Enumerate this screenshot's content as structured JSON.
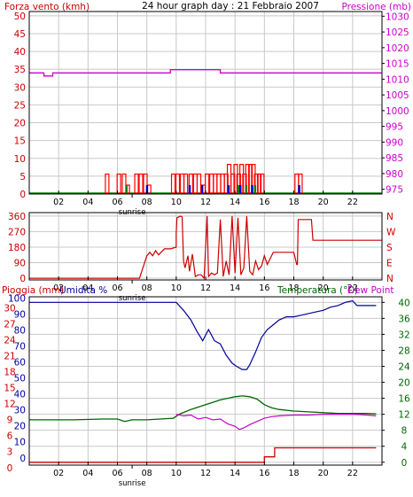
{
  "header": {
    "left_label": "Forza vento (kmh)",
    "title": "24 hour graph day : 21 Febbraio 2007",
    "right_label": "Pressione (mb)"
  },
  "colors": {
    "wind": "#ff0000",
    "wind_outline": "#cc0000",
    "gust_green": "#008000",
    "gust_blue": "#0000cc",
    "pressure": "#cc00cc",
    "direction": "#cc0000",
    "humidity": "#000099",
    "temperature": "#006600",
    "dewpoint": "#cc00cc",
    "rain": "#cc0000",
    "axis_red": "#cc0000",
    "axis_magenta": "#cc00cc",
    "axis_green": "#006600",
    "axis_blue": "#000099",
    "grid": "#c8c8c8",
    "frame": "#000000"
  },
  "chart_data": [
    {
      "type": "bar",
      "panel": "wind",
      "y_left_label": "Forza vento (kmh)",
      "y_left_ticks": [
        0,
        5,
        10,
        15,
        20,
        25,
        30,
        35,
        40,
        45,
        50
      ],
      "y_left_range": [
        0,
        50
      ],
      "y_right_label": "Pressione (mb)",
      "y_right_ticks": [
        975,
        980,
        985,
        990,
        995,
        1000,
        1005,
        1010,
        1015,
        1020,
        1025,
        1030
      ],
      "y_right_range": [
        975,
        1030
      ],
      "x_ticks": [
        "02",
        "04",
        "06",
        "08",
        "10",
        "12",
        "14",
        "16",
        "18",
        "20",
        "22"
      ],
      "x_range": [
        0,
        24
      ],
      "sunrise_label": "sunrise",
      "grid": true,
      "wind_bars": [
        {
          "x": 5.3,
          "v": 5.6
        },
        {
          "x": 6.1,
          "v": 5.6
        },
        {
          "x": 6.45,
          "v": 5.6
        },
        {
          "x": 6.7,
          "v": 2.5
        },
        {
          "x": 7.3,
          "v": 5.6
        },
        {
          "x": 7.6,
          "v": 5.6
        },
        {
          "x": 7.9,
          "v": 5.6
        },
        {
          "x": 8.15,
          "v": 2.5
        },
        {
          "x": 9.8,
          "v": 5.6
        },
        {
          "x": 10.1,
          "v": 5.6
        },
        {
          "x": 10.4,
          "v": 5.6
        },
        {
          "x": 10.65,
          "v": 5.6
        },
        {
          "x": 11.0,
          "v": 5.6
        },
        {
          "x": 11.3,
          "v": 5.6
        },
        {
          "x": 11.55,
          "v": 5.6
        },
        {
          "x": 11.85,
          "v": 2.5
        },
        {
          "x": 12.1,
          "v": 5.6
        },
        {
          "x": 12.4,
          "v": 5.6
        },
        {
          "x": 12.65,
          "v": 5.6
        },
        {
          "x": 12.9,
          "v": 5.6
        },
        {
          "x": 13.15,
          "v": 5.6
        },
        {
          "x": 13.4,
          "v": 5.6
        },
        {
          "x": 13.6,
          "v": 8.3
        },
        {
          "x": 13.85,
          "v": 5.6
        },
        {
          "x": 14.05,
          "v": 8.3
        },
        {
          "x": 14.25,
          "v": 5.6
        },
        {
          "x": 14.45,
          "v": 8.3
        },
        {
          "x": 14.65,
          "v": 5.6
        },
        {
          "x": 14.85,
          "v": 8.3
        },
        {
          "x": 15.05,
          "v": 8.3
        },
        {
          "x": 15.25,
          "v": 8.3
        },
        {
          "x": 15.45,
          "v": 5.6
        },
        {
          "x": 15.65,
          "v": 5.6
        },
        {
          "x": 15.85,
          "v": 5.6
        },
        {
          "x": 18.2,
          "v": 5.6
        },
        {
          "x": 18.45,
          "v": 5.6
        }
      ],
      "gust_bars": [
        {
          "x": 6.6,
          "v": 2.5,
          "c": "green"
        },
        {
          "x": 8.0,
          "v": 2.5,
          "c": "blue"
        },
        {
          "x": 10.9,
          "v": 2.5,
          "c": "blue"
        },
        {
          "x": 11.75,
          "v": 2.5,
          "c": "blue"
        },
        {
          "x": 13.55,
          "v": 2.5,
          "c": "blue"
        },
        {
          "x": 14.2,
          "v": 2.5,
          "c": "green"
        },
        {
          "x": 14.35,
          "v": 2.5,
          "c": "blue"
        },
        {
          "x": 14.75,
          "v": 2.5,
          "c": "green"
        },
        {
          "x": 15.15,
          "v": 2.5,
          "c": "blue"
        },
        {
          "x": 15.35,
          "v": 2.5,
          "c": "green"
        },
        {
          "x": 18.35,
          "v": 2.5,
          "c": "blue"
        }
      ],
      "pressure": {
        "x": [
          0,
          1.0,
          1.0,
          1.6,
          1.6,
          3.4,
          3.4,
          7.3,
          7.3,
          9.6,
          9.6,
          13.0,
          13.0,
          14.2,
          14.2,
          24
        ],
        "y": [
          1012,
          1012,
          1011,
          1011,
          1012,
          1012,
          1012,
          1012,
          1012,
          1012,
          1013,
          1013,
          1012,
          1012,
          1012,
          1012
        ]
      }
    },
    {
      "type": "line",
      "panel": "direction",
      "y_left_ticks": [
        0,
        90,
        180,
        270,
        360
      ],
      "y_left_range": [
        0,
        360
      ],
      "y_right_ticks": [
        "N",
        "W",
        "S",
        "E",
        "N"
      ],
      "x_ticks": [
        "02",
        "04",
        "06",
        "08",
        "10",
        "12",
        "14",
        "16",
        "18",
        "20",
        "22"
      ],
      "x_range": [
        0,
        24
      ],
      "sunrise_label": "sunrise",
      "grid": true,
      "series": [
        {
          "x": [
            0,
            7.5,
            8.0,
            8.2,
            8.4,
            8.6,
            8.8,
            9.2,
            9.6,
            10.0,
            10.0,
            10.05,
            10.3,
            10.4,
            10.5,
            10.6,
            10.8,
            10.9,
            11.1,
            11.3,
            11.5,
            11.7,
            11.9,
            12.1,
            12.2,
            12.4,
            12.6,
            12.8,
            13.0,
            13.2,
            13.4,
            13.6,
            13.8,
            14.0,
            14.2,
            14.4,
            14.6,
            14.8,
            15.0,
            15.2,
            15.4,
            15.6,
            15.8,
            16.0,
            16.2,
            16.6,
            17.0,
            18.0,
            18.2,
            18.25,
            18.3,
            19.2,
            19.3,
            24
          ],
          "y": [
            0,
            0,
            130,
            150,
            130,
            160,
            135,
            170,
            170,
            180,
            260,
            350,
            360,
            355,
            100,
            60,
            130,
            40,
            140,
            10,
            20,
            20,
            0,
            360,
            10,
            30,
            20,
            30,
            340,
            10,
            100,
            20,
            360,
            30,
            350,
            20,
            60,
            360,
            40,
            20,
            100,
            50,
            70,
            130,
            80,
            150,
            150,
            150,
            80,
            80,
            340,
            340,
            220,
            220
          ]
        }
      ]
    },
    {
      "type": "line",
      "panel": "climate",
      "y_left_label_1": "Pioggia (mm)",
      "y_left_label_2": "Umidita %",
      "y_right_label_1": "Temperatura (°C)",
      "y_right_label_2": "Dew Point",
      "rain_ticks": [
        0,
        3,
        6,
        9,
        12,
        15,
        18,
        21,
        24,
        27,
        30
      ],
      "humidity_ticks": [
        0,
        10,
        20,
        30,
        40,
        50,
        60,
        70,
        80,
        90,
        100
      ],
      "y_left_range": [
        0,
        100
      ],
      "temperature_ticks": [
        0,
        4,
        8,
        12,
        16,
        20,
        24,
        28,
        32,
        36,
        40
      ],
      "y_right_range": [
        0,
        40
      ],
      "x_ticks": [
        "02",
        "04",
        "06",
        "08",
        "10",
        "12",
        "14",
        "16",
        "18",
        "20",
        "22"
      ],
      "x_range": [
        0,
        24
      ],
      "sunrise_label": "sunrise",
      "grid": true,
      "series": [
        {
          "name": "Umidita %",
          "x": [
            0,
            10.0,
            10.5,
            11.0,
            11.4,
            11.8,
            12.2,
            12.6,
            13.0,
            13.4,
            13.8,
            14.1,
            14.5,
            14.8,
            15.0,
            15.4,
            15.8,
            16.2,
            16.6,
            17.0,
            17.5,
            18.0,
            18.5,
            19.0,
            19.5,
            20.0,
            20.5,
            21.0,
            21.5,
            22.0,
            22.3,
            22.5,
            23.0,
            23.6
          ],
          "y": [
            100,
            100,
            95,
            89,
            82,
            76,
            83,
            76,
            74,
            67,
            62,
            60,
            58,
            58,
            61,
            69,
            78,
            83,
            86,
            89,
            91,
            91,
            92,
            93,
            94,
            95,
            97,
            98,
            100,
            101,
            98,
            98,
            98,
            98
          ]
        },
        {
          "name": "Temperatura (°C)",
          "x": [
            0,
            3.0,
            5.0,
            6.0,
            6.5,
            7.0,
            8.0,
            9.8,
            10.2,
            10.6,
            11.0,
            11.5,
            12.0,
            12.5,
            13.0,
            13.5,
            14.0,
            14.5,
            15.0,
            15.5,
            16.0,
            16.5,
            17.0,
            18.0,
            19.0,
            20.0,
            21.0,
            22.0,
            23.0,
            23.6
          ],
          "y": [
            10.6,
            10.6,
            10.8,
            10.8,
            10.2,
            10.6,
            10.6,
            11.0,
            12.0,
            12.6,
            13.2,
            13.8,
            14.4,
            15.0,
            15.6,
            16.0,
            16.4,
            16.6,
            16.4,
            15.8,
            14.4,
            13.6,
            13.2,
            12.8,
            12.6,
            12.4,
            12.2,
            12.2,
            12.2,
            12.1
          ]
        },
        {
          "name": "Dew Point",
          "x": [
            10.0,
            10.5,
            11.0,
            11.5,
            12.0,
            12.5,
            13.0,
            13.5,
            14.0,
            14.3,
            14.6,
            15.0,
            15.5,
            16.0,
            16.5,
            17.0,
            18.0,
            19.0,
            20.0,
            21.0,
            22.0,
            23.0,
            23.6
          ],
          "y": [
            12.0,
            11.6,
            11.8,
            10.8,
            11.2,
            10.6,
            10.8,
            9.6,
            9.0,
            8.2,
            8.6,
            9.4,
            10.2,
            11.0,
            11.4,
            11.6,
            11.8,
            11.8,
            12.0,
            12.0,
            12.0,
            11.8,
            11.6
          ]
        },
        {
          "name": "Pioggia (mm)",
          "x": [
            0,
            16.0,
            16.0,
            16.7,
            16.7,
            23.6
          ],
          "y": [
            0,
            0,
            1,
            1,
            2.7,
            2.7
          ]
        }
      ]
    }
  ]
}
